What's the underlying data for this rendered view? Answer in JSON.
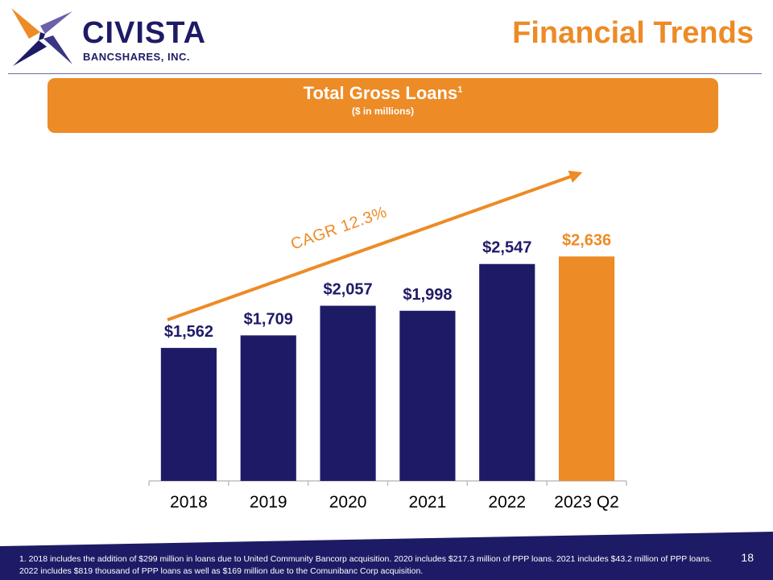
{
  "header": {
    "logo": {
      "name": "CIVISTA",
      "sub": "BANCSHARES, INC."
    },
    "title": "Financial Trends"
  },
  "banner": {
    "title": "Total Gross Loans",
    "superscript": "1",
    "subtitle": "($ in millions)"
  },
  "chart_data": {
    "type": "bar",
    "title": "Total Gross Loans",
    "units": "$ in millions",
    "categories": [
      "2018",
      "2019",
      "2020",
      "2021",
      "2022",
      "2023 Q2"
    ],
    "values": [
      1562,
      1709,
      2057,
      1998,
      2547,
      2636
    ],
    "data_labels": [
      "$1,562",
      "$1,709",
      "$2,057",
      "$1,998",
      "$2,547",
      "$2,636"
    ],
    "highlight_index": 5,
    "ylim": [
      0,
      2800
    ],
    "annotation": "CAGR 12.3%",
    "grid": false,
    "legend": false
  },
  "colors": {
    "navy": "#1e1b66",
    "orange": "#ed8b26",
    "axis": "#bfbfbf"
  },
  "footer": {
    "footnote": "1. 2018 includes the addition of $299 million in loans due to United Community Bancorp acquisition. 2020 includes $217.3 million of PPP loans. 2021 includes $43.2 million of PPP loans. 2022 includes $819 thousand of PPP loans as well as $169 million due to the Comunibanc Corp acquisition.",
    "page_number": "18"
  }
}
